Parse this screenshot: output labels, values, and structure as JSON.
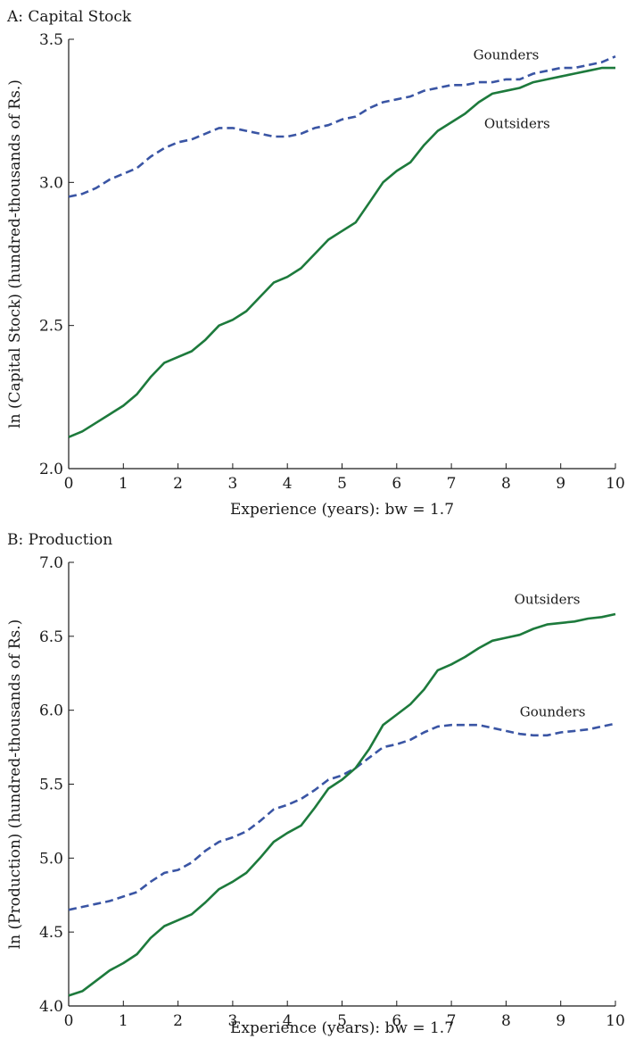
{
  "chart_data": [
    {
      "type": "line",
      "title": "A: Capital Stock",
      "xlabel": "Experience (years): bw = 1.7",
      "ylabel": "ln (Capital Stock) (hundred-thousands of Rs.)",
      "xlim": [
        0,
        10
      ],
      "ylim": [
        2.0,
        3.5
      ],
      "xticks": [
        "0",
        "1",
        "2",
        "3",
        "4",
        "5",
        "6",
        "7",
        "8",
        "9",
        "10"
      ],
      "yticks": [
        "2.0",
        "2.5",
        "3.0",
        "3.5"
      ],
      "grid": false,
      "series": [
        {
          "name": "Gounders",
          "style": "dashed",
          "color": "#3a55a4",
          "x": [
            0,
            0.25,
            0.5,
            0.75,
            1.0,
            1.25,
            1.5,
            1.75,
            2.0,
            2.25,
            2.5,
            2.75,
            3.0,
            3.25,
            3.5,
            3.75,
            4.0,
            4.25,
            4.5,
            4.75,
            5.0,
            5.25,
            5.5,
            5.75,
            6.0,
            6.25,
            6.5,
            6.75,
            7.0,
            7.25,
            7.5,
            7.75,
            8.0,
            8.25,
            8.5,
            8.75,
            9.0,
            9.25,
            9.5,
            9.75,
            10.0
          ],
          "y": [
            2.95,
            2.96,
            2.98,
            3.01,
            3.03,
            3.05,
            3.09,
            3.12,
            3.14,
            3.15,
            3.17,
            3.19,
            3.19,
            3.18,
            3.17,
            3.16,
            3.16,
            3.17,
            3.19,
            3.2,
            3.22,
            3.23,
            3.26,
            3.28,
            3.29,
            3.3,
            3.32,
            3.33,
            3.34,
            3.34,
            3.35,
            3.35,
            3.36,
            3.36,
            3.38,
            3.39,
            3.4,
            3.4,
            3.41,
            3.42,
            3.44
          ]
        },
        {
          "name": "Outsiders",
          "style": "solid",
          "color": "#1d7a3c",
          "x": [
            0,
            0.25,
            0.5,
            0.75,
            1.0,
            1.25,
            1.5,
            1.75,
            2.0,
            2.25,
            2.5,
            2.75,
            3.0,
            3.25,
            3.5,
            3.75,
            4.0,
            4.25,
            4.5,
            4.75,
            5.0,
            5.25,
            5.5,
            5.75,
            6.0,
            6.25,
            6.5,
            6.75,
            7.0,
            7.25,
            7.5,
            7.75,
            8.0,
            8.25,
            8.5,
            8.75,
            9.0,
            9.25,
            9.5,
            9.75,
            10.0
          ],
          "y": [
            2.11,
            2.13,
            2.16,
            2.19,
            2.22,
            2.26,
            2.32,
            2.37,
            2.39,
            2.41,
            2.45,
            2.5,
            2.52,
            2.55,
            2.6,
            2.65,
            2.67,
            2.7,
            2.75,
            2.8,
            2.83,
            2.86,
            2.93,
            3.0,
            3.04,
            3.07,
            3.13,
            3.18,
            3.21,
            3.24,
            3.28,
            3.31,
            3.32,
            3.33,
            3.35,
            3.36,
            3.37,
            3.38,
            3.39,
            3.4,
            3.4
          ]
        }
      ],
      "annotations": [
        {
          "text": "Gounders",
          "x": 7.4,
          "y": 3.43
        },
        {
          "text": "Outsiders",
          "x": 7.6,
          "y": 3.19
        }
      ]
    },
    {
      "type": "line",
      "title": "B: Production",
      "xlabel": "Experience (years): bw = 1.7",
      "ylabel": "ln (Production) (hundred-thousands of Rs.)",
      "xlim": [
        0,
        10
      ],
      "ylim": [
        4.0,
        7.0
      ],
      "xticks": [
        "0",
        "1",
        "2",
        "3",
        "4",
        "5",
        "6",
        "7",
        "8",
        "9",
        "10"
      ],
      "yticks": [
        "4.0",
        "4.5",
        "5.0",
        "5.5",
        "6.0",
        "6.5",
        "7.0"
      ],
      "grid": false,
      "series": [
        {
          "name": "Gounders",
          "style": "dashed",
          "color": "#3a55a4",
          "x": [
            0,
            0.25,
            0.5,
            0.75,
            1.0,
            1.25,
            1.5,
            1.75,
            2.0,
            2.25,
            2.5,
            2.75,
            3.0,
            3.25,
            3.5,
            3.75,
            4.0,
            4.25,
            4.5,
            4.75,
            5.0,
            5.25,
            5.5,
            5.75,
            6.0,
            6.25,
            6.5,
            6.75,
            7.0,
            7.25,
            7.5,
            7.75,
            8.0,
            8.25,
            8.5,
            8.75,
            9.0,
            9.25,
            9.5,
            9.75,
            10.0
          ],
          "y": [
            4.65,
            4.67,
            4.69,
            4.71,
            4.74,
            4.77,
            4.84,
            4.9,
            4.92,
            4.97,
            5.05,
            5.11,
            5.14,
            5.18,
            5.25,
            5.33,
            5.36,
            5.4,
            5.46,
            5.53,
            5.56,
            5.61,
            5.68,
            5.75,
            5.77,
            5.8,
            5.85,
            5.89,
            5.9,
            5.9,
            5.9,
            5.88,
            5.86,
            5.84,
            5.83,
            5.83,
            5.85,
            5.86,
            5.87,
            5.89,
            5.91
          ]
        },
        {
          "name": "Outsiders",
          "style": "solid",
          "color": "#1d7a3c",
          "x": [
            0,
            0.25,
            0.5,
            0.75,
            1.0,
            1.25,
            1.5,
            1.75,
            2.0,
            2.25,
            2.5,
            2.75,
            3.0,
            3.25,
            3.5,
            3.75,
            4.0,
            4.25,
            4.5,
            4.75,
            5.0,
            5.25,
            5.5,
            5.75,
            6.0,
            6.25,
            6.5,
            6.75,
            7.0,
            7.25,
            7.5,
            7.75,
            8.0,
            8.25,
            8.5,
            8.75,
            9.0,
            9.25,
            9.5,
            9.75,
            10.0
          ],
          "y": [
            4.07,
            4.1,
            4.17,
            4.24,
            4.29,
            4.35,
            4.46,
            4.54,
            4.58,
            4.62,
            4.7,
            4.79,
            4.84,
            4.9,
            5.0,
            5.11,
            5.17,
            5.22,
            5.34,
            5.47,
            5.53,
            5.61,
            5.74,
            5.9,
            5.97,
            6.04,
            6.14,
            6.27,
            6.31,
            6.36,
            6.42,
            6.47,
            6.49,
            6.51,
            6.55,
            6.58,
            6.59,
            6.6,
            6.62,
            6.63,
            6.65
          ]
        }
      ],
      "annotations": [
        {
          "text": "Outsiders",
          "x": 8.15,
          "y": 6.72
        },
        {
          "text": "Gounders",
          "x": 8.25,
          "y": 5.96
        }
      ]
    }
  ]
}
